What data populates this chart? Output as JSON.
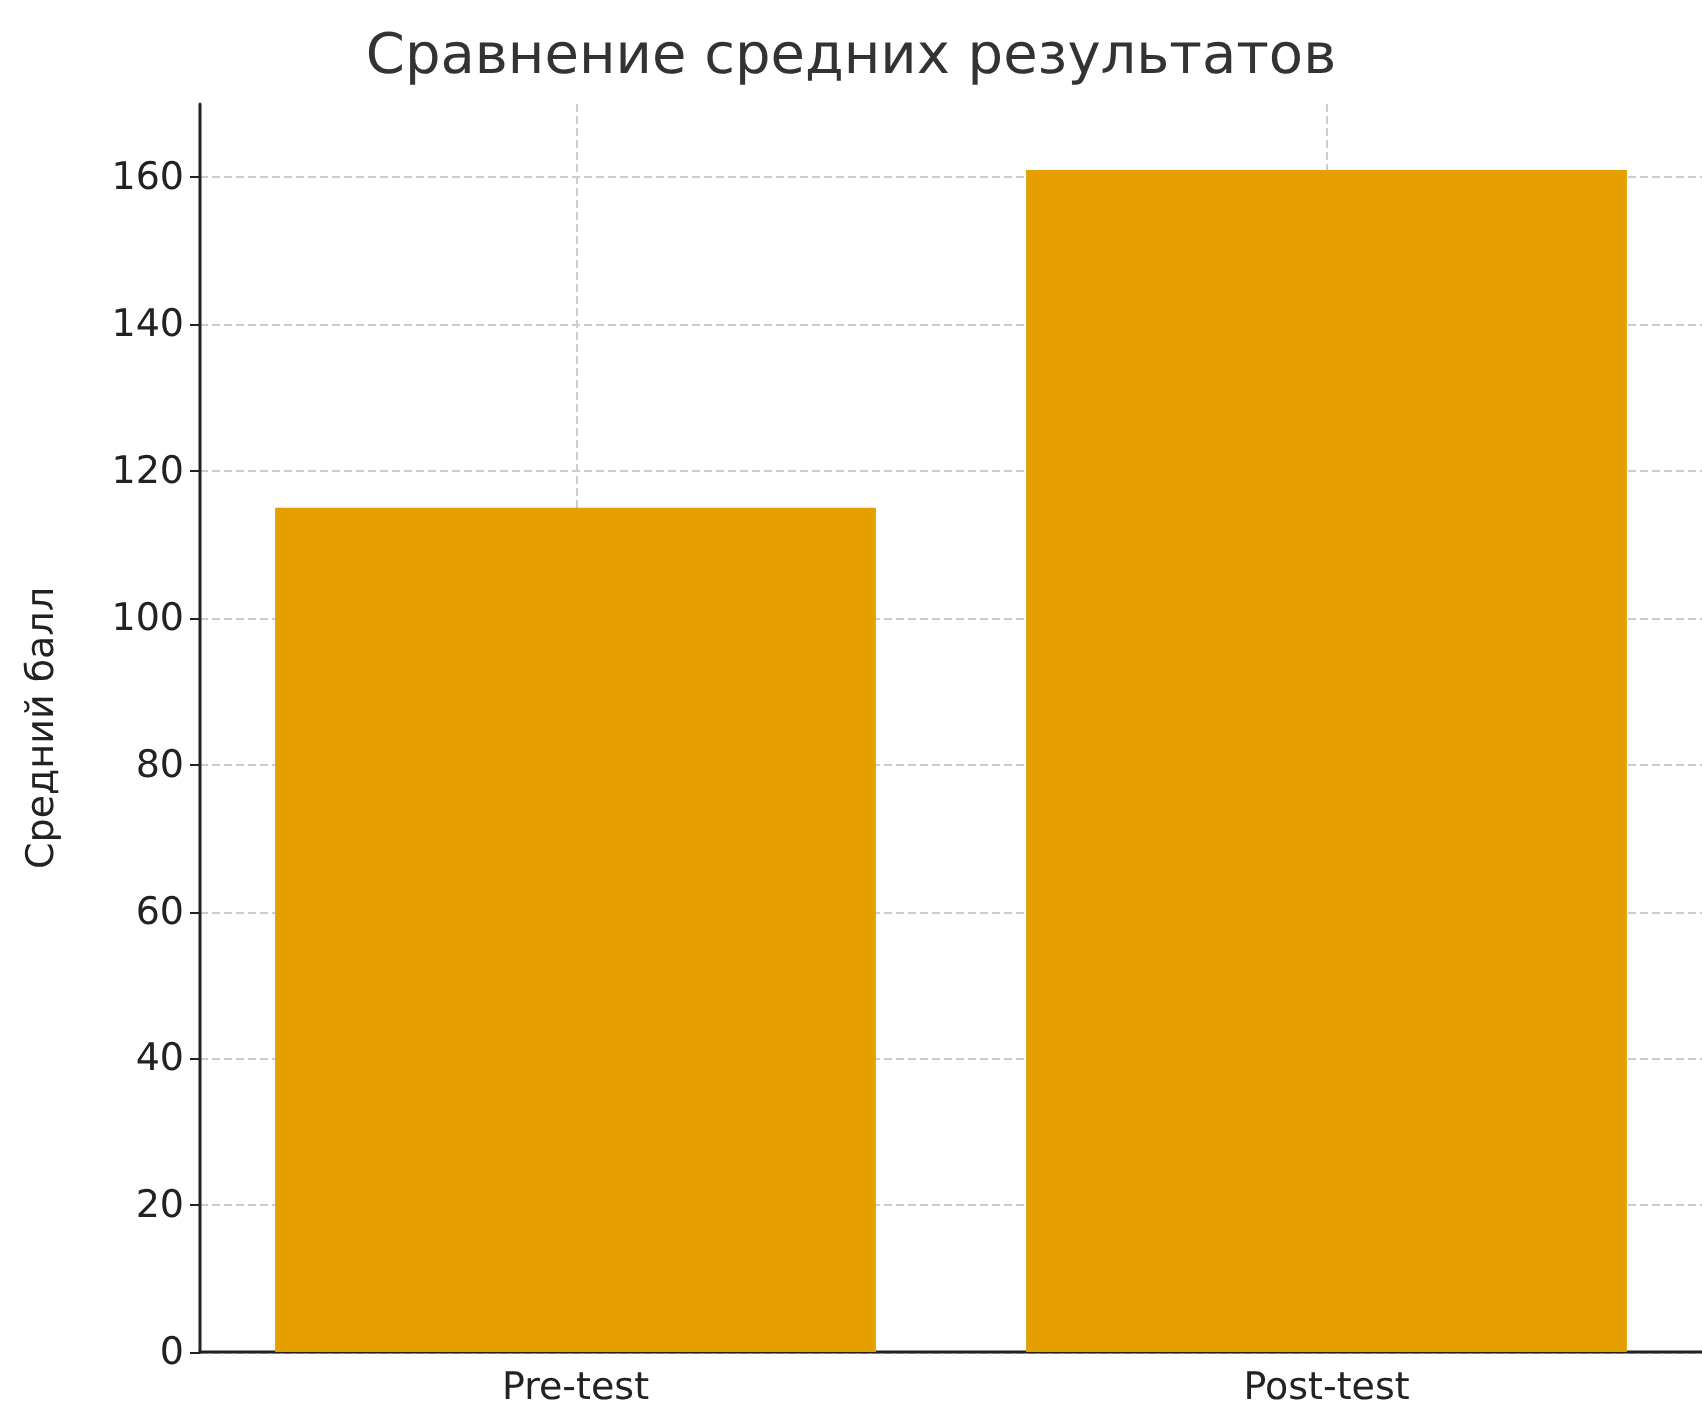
{
  "chart_data": {
    "type": "bar",
    "title": "Сравнение средних результатов",
    "ylabel": "Средний балл",
    "categories": [
      "Pre-test",
      "Post-test"
    ],
    "values": [
      115,
      161
    ],
    "color": "#e5a000",
    "ylim": [
      0,
      170
    ],
    "yticks": [
      0,
      20,
      40,
      60,
      80,
      100,
      120,
      140,
      160
    ],
    "grid": true
  }
}
